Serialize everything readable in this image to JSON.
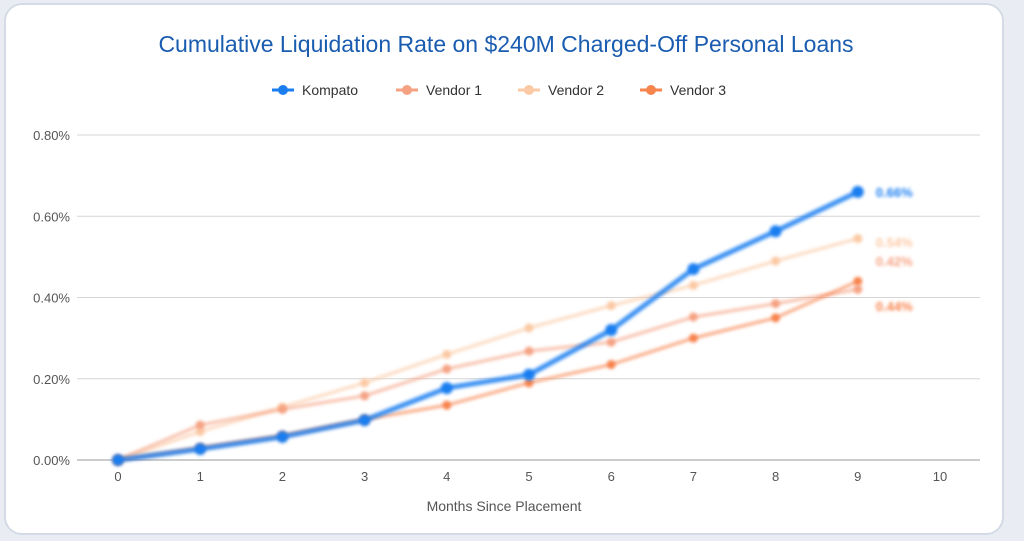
{
  "chart_data": {
    "type": "line",
    "title": "Cumulative Liquidation Rate on $240M Charged-Off Personal Loans",
    "xlabel": "Months Since Placement",
    "ylabel": "",
    "x": [
      0,
      1,
      2,
      3,
      4,
      5,
      6,
      7,
      8,
      9
    ],
    "xticks": [
      "0",
      "1",
      "2",
      "3",
      "4",
      "5",
      "6",
      "7",
      "8",
      "9",
      "10"
    ],
    "xlim": [
      0,
      10
    ],
    "ylim": [
      0,
      0.8
    ],
    "yticks": [
      "0.00%",
      "0.20%",
      "0.40%",
      "0.60%",
      "0.80%"
    ],
    "grid": true,
    "legend_position": "top",
    "series": [
      {
        "name": "Kompato",
        "color": "#1a7ef0",
        "values": [
          0,
          0.027,
          0.057,
          0.098,
          0.177,
          0.21,
          0.32,
          0.47,
          0.563,
          0.66
        ],
        "end_label": "0.66%"
      },
      {
        "name": "Vendor 1",
        "color": "#f5a283",
        "values": [
          0,
          0.086,
          0.125,
          0.158,
          0.224,
          0.268,
          0.29,
          0.352,
          0.385,
          0.42
        ],
        "end_label": "0.42%"
      },
      {
        "name": "Vendor 2",
        "color": "#fbc9a4",
        "values": [
          0,
          0.07,
          0.13,
          0.19,
          0.26,
          0.325,
          0.38,
          0.43,
          0.49,
          0.545
        ],
        "end_label": "0.54%"
      },
      {
        "name": "Vendor 3",
        "color": "#f7834d",
        "values": [
          0,
          0.03,
          0.06,
          0.1,
          0.135,
          0.19,
          0.235,
          0.3,
          0.35,
          0.44
        ],
        "end_label": "0.44%"
      }
    ]
  }
}
